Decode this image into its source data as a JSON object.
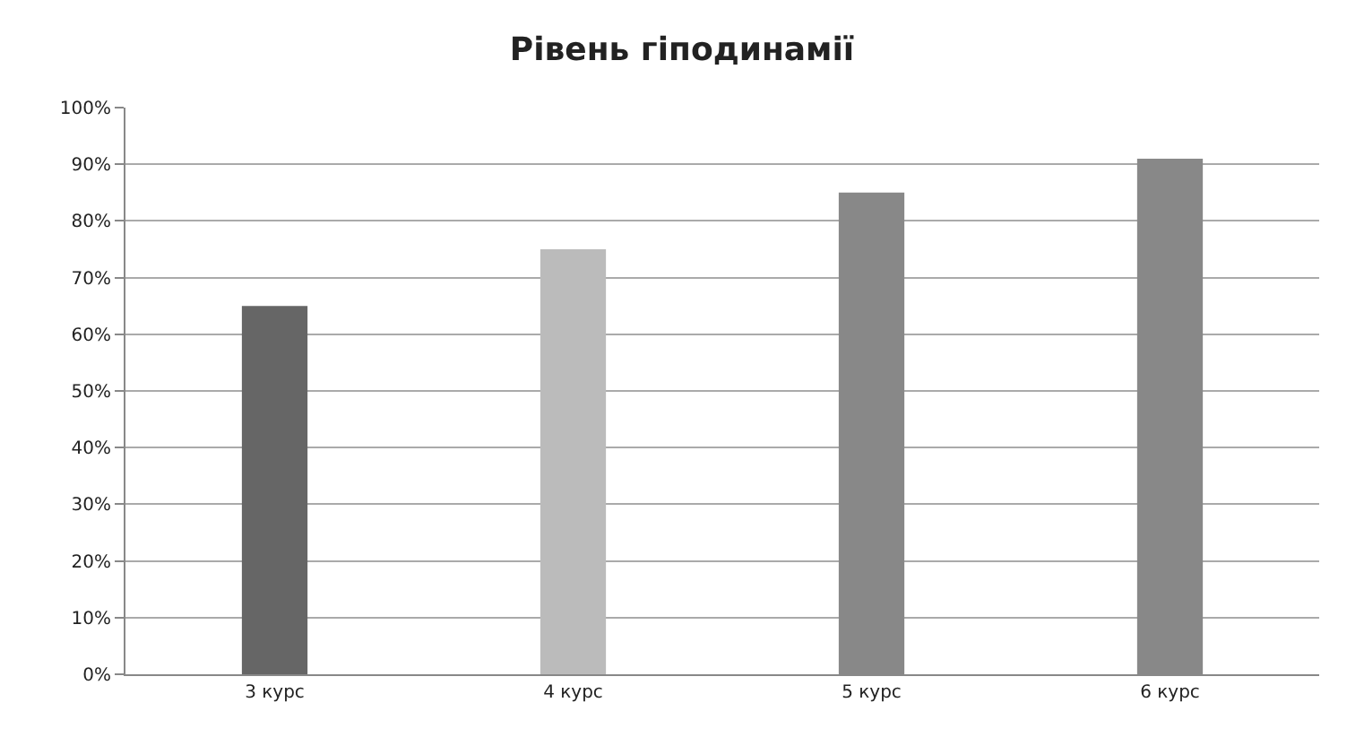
{
  "chart_data": {
    "type": "bar",
    "title": "Рівень гіподинамії",
    "categories": [
      "3 курс",
      "4 курс",
      "5 курс",
      "6 курс"
    ],
    "values": [
      65,
      75,
      85,
      91
    ],
    "colors": [
      "#666666",
      "#bbbbbb",
      "#888888",
      "#888888"
    ],
    "ylim": [
      0,
      100
    ],
    "yticks": [
      {
        "value": 0,
        "label": "0%"
      },
      {
        "value": 10,
        "label": "10%"
      },
      {
        "value": 20,
        "label": "20%"
      },
      {
        "value": 30,
        "label": "30%"
      },
      {
        "value": 40,
        "label": "40%"
      },
      {
        "value": 50,
        "label": "50%"
      },
      {
        "value": 60,
        "label": "60%"
      },
      {
        "value": 70,
        "label": "70%"
      },
      {
        "value": 80,
        "label": "80%"
      },
      {
        "value": 90,
        "label": "90%"
      },
      {
        "value": 100,
        "label": "100%"
      }
    ],
    "grid": "y"
  }
}
